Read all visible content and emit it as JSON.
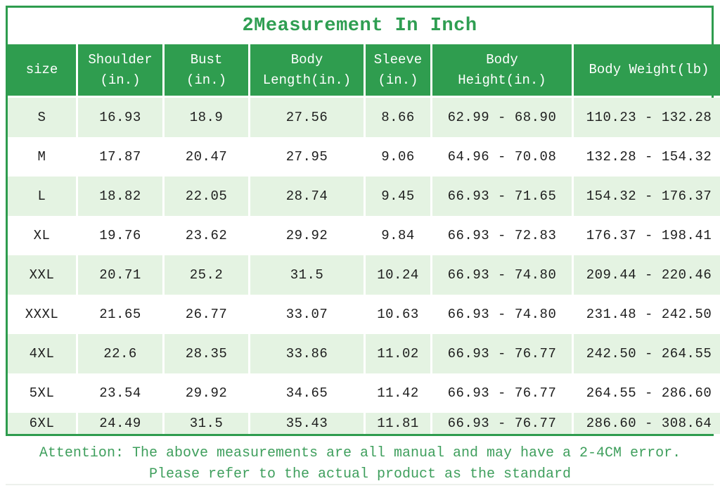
{
  "page": {
    "title": "2Measurement In Inch"
  },
  "colors": {
    "border_green": "#2e9c4e",
    "header_green": "#2f9d4f",
    "row_stripe_green": "#e4f3e2",
    "title_text_green": "#2f9e52",
    "footer_text_green": "#3f9f5d",
    "data_text": "#1e1e1e",
    "header_text": "#ffffff"
  },
  "chart_data": {
    "type": "table",
    "title": "2Measurement In Inch",
    "columns": [
      "size",
      "Shoulder\n(in.)",
      "Bust\n(in.)",
      "Body\nLength(in.)",
      "Sleeve\n(in.)",
      "Body\nHeight(in.)",
      "Body Weight(lb)"
    ],
    "rows": [
      [
        "S",
        "16.93",
        "18.9",
        "27.56",
        "8.66",
        "62.99 - 68.90",
        "110.23 - 132.28"
      ],
      [
        "M",
        "17.87",
        "20.47",
        "27.95",
        "9.06",
        "64.96 - 70.08",
        "132.28 - 154.32"
      ],
      [
        "L",
        "18.82",
        "22.05",
        "28.74",
        "9.45",
        "66.93 - 71.65",
        "154.32 - 176.37"
      ],
      [
        "XL",
        "19.76",
        "23.62",
        "29.92",
        "9.84",
        "66.93 - 72.83",
        "176.37 - 198.41"
      ],
      [
        "XXL",
        "20.71",
        "25.2",
        "31.5",
        "10.24",
        "66.93 - 74.80",
        "209.44 - 220.46"
      ],
      [
        "XXXL",
        "21.65",
        "26.77",
        "33.07",
        "10.63",
        "66.93 - 74.80",
        "231.48 - 242.50"
      ],
      [
        "4XL",
        "22.6",
        "28.35",
        "33.86",
        "11.02",
        "66.93 - 76.77",
        "242.50 - 264.55"
      ],
      [
        "5XL",
        "23.54",
        "29.92",
        "34.65",
        "11.42",
        "66.93 - 76.77",
        "264.55 - 286.60"
      ],
      [
        "6XL",
        "24.49",
        "31.5",
        "35.43",
        "11.81",
        "66.93 - 76.77",
        "286.60 - 308.64"
      ]
    ]
  },
  "footer": {
    "line1": "Attention: The above measurements are all manual and may have a 2-4CM error.",
    "line2": "Please refer to the actual product as the standard"
  }
}
